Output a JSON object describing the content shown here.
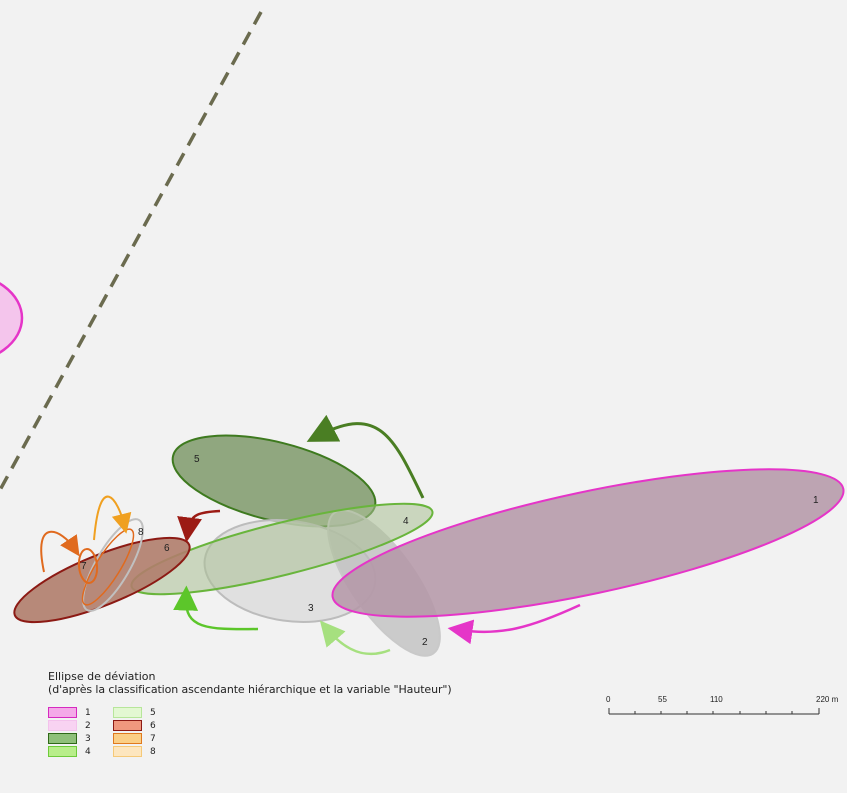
{
  "map": {
    "ellipses": [
      {
        "id": "1",
        "label": "1",
        "fill": "#b497a7",
        "stroke": "#e535c8"
      },
      {
        "id": "2",
        "label": "2",
        "fill": "#bdbdbd",
        "stroke": "#c9c9c9"
      },
      {
        "id": "3",
        "label": "3",
        "fill": "#d9d9d9",
        "stroke": "#bcbcbc"
      },
      {
        "id": "4",
        "label": "4",
        "fill": "#a9bf93",
        "stroke": "#69b53c"
      },
      {
        "id": "5",
        "label": "5",
        "fill": "#7f9a6b",
        "stroke": "#3e7a1f"
      },
      {
        "id": "6",
        "label": "6",
        "fill": "#b07d6b",
        "stroke": "#8c1a14"
      },
      {
        "id": "7",
        "label": "7",
        "fill": "none",
        "stroke": "#e06a1e"
      },
      {
        "id": "8",
        "label": "8",
        "fill": "none",
        "stroke": "#c0c0c0"
      }
    ]
  },
  "legend": {
    "title": "Ellipse de déviation",
    "subtitle": "(d'après la classification ascendante hiérarchique et la variable \"Hauteur\")",
    "items": [
      {
        "label": "1",
        "fill": "#f4a9e8",
        "stroke": "#d62ac0"
      },
      {
        "label": "2",
        "fill": "#f8d3f2",
        "stroke": "#f3c2ec"
      },
      {
        "label": "3",
        "fill": "#8fc07a",
        "stroke": "#2f6a18"
      },
      {
        "label": "4",
        "fill": "#b8ee8a",
        "stroke": "#6ecb3a"
      },
      {
        "label": "5",
        "fill": "#e3f8d2",
        "stroke": "#b7e69a"
      },
      {
        "label": "6",
        "fill": "#f0987e",
        "stroke": "#8c1a14"
      },
      {
        "label": "7",
        "fill": "#fbcf86",
        "stroke": "#e07a1e"
      },
      {
        "label": "8",
        "fill": "#fde6bf",
        "stroke": "#f5c978"
      }
    ]
  },
  "scale": {
    "ticks": [
      "0",
      "55",
      "110",
      "220 m"
    ]
  }
}
